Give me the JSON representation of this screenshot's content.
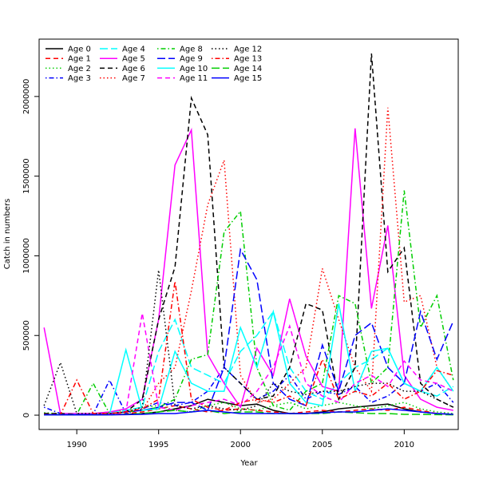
{
  "chart_data": {
    "type": "line",
    "title": "",
    "xlabel": "Year",
    "ylabel": "Catch in numbers",
    "xlim": [
      1987.7,
      2013.3
    ],
    "ylim": [
      -90000,
      2360000
    ],
    "xticks": [
      1990,
      1995,
      2000,
      2005,
      2010
    ],
    "yticks": [
      0,
      500000,
      1000000,
      1500000,
      2000000
    ],
    "legend_position": "top-left",
    "x": [
      1988,
      1989,
      1990,
      1991,
      1992,
      1993,
      1994,
      1995,
      1996,
      1997,
      1998,
      1999,
      2000,
      2001,
      2002,
      2003,
      2004,
      2005,
      2006,
      2007,
      2008,
      2009,
      2010,
      2011,
      2012,
      2013
    ],
    "series": [
      {
        "name": "Age 0",
        "color": "#000000",
        "dash": "solid",
        "values": [
          5000,
          3000,
          2000,
          2000,
          3000,
          5000,
          10000,
          20000,
          40000,
          60000,
          100000,
          80000,
          60000,
          70000,
          30000,
          10000,
          10000,
          20000,
          40000,
          50000,
          60000,
          70000,
          40000,
          20000,
          10000,
          5000
        ]
      },
      {
        "name": "Age 1",
        "color": "#ff0000",
        "dash": "dashed",
        "values": [
          10000,
          5000,
          3000,
          4000,
          5000,
          10000,
          20000,
          40000,
          60000,
          40000,
          20000,
          30000,
          40000,
          30000,
          20000,
          10000,
          20000,
          30000,
          20000,
          30000,
          40000,
          30000,
          50000,
          30000,
          10000,
          5000
        ]
      },
      {
        "name": "Age 2",
        "color": "#00cd00",
        "dash": "dotted",
        "values": [
          15000,
          8000,
          5000,
          10000,
          20000,
          30000,
          50000,
          60000,
          30000,
          20000,
          60000,
          80000,
          40000,
          30000,
          60000,
          80000,
          40000,
          60000,
          80000,
          60000,
          40000,
          60000,
          80000,
          40000,
          20000,
          10000
        ]
      },
      {
        "name": "Age 3",
        "color": "#0000ff",
        "dash": "dotdash",
        "values": [
          50000,
          10000,
          5000,
          5000,
          220000,
          10000,
          40000,
          80000,
          60000,
          80000,
          150000,
          300000,
          200000,
          100000,
          150000,
          250000,
          100000,
          150000,
          130000,
          180000,
          80000,
          120000,
          200000,
          150000,
          200000,
          80000
        ]
      },
      {
        "name": "Age 4",
        "color": "#00ffff",
        "dash": "longdash",
        "values": [
          5000,
          3000,
          3000,
          10000,
          20000,
          30000,
          50000,
          400000,
          600000,
          300000,
          250000,
          200000,
          400000,
          500000,
          650000,
          300000,
          150000,
          100000,
          200000,
          300000,
          350000,
          420000,
          200000,
          150000,
          120000,
          180000
        ]
      },
      {
        "name": "Age 5",
        "color": "#ff00ff",
        "dash": "solid",
        "values": [
          550000,
          10000,
          10000,
          10000,
          20000,
          40000,
          100000,
          600000,
          1570000,
          1790000,
          380000,
          200000,
          50000,
          420000,
          250000,
          730000,
          370000,
          180000,
          150000,
          1800000,
          670000,
          1190000,
          250000,
          100000,
          50000,
          30000
        ]
      },
      {
        "name": "Age 6",
        "color": "#000000",
        "dash": "dashed",
        "values": [
          10000,
          10000,
          5000,
          5000,
          10000,
          20000,
          100000,
          600000,
          930000,
          1990000,
          1760000,
          300000,
          200000,
          100000,
          120000,
          300000,
          700000,
          660000,
          100000,
          300000,
          2270000,
          900000,
          1050000,
          200000,
          100000,
          50000
        ]
      },
      {
        "name": "Age 7",
        "color": "#ff0000",
        "dash": "dotted",
        "values": [
          5000,
          3000,
          3000,
          5000,
          10000,
          20000,
          30000,
          200000,
          300000,
          780000,
          1320000,
          1600000,
          250000,
          80000,
          100000,
          200000,
          300000,
          920000,
          600000,
          300000,
          150000,
          1930000,
          710000,
          750000,
          300000,
          150000
        ]
      },
      {
        "name": "Age 8",
        "color": "#00cd00",
        "dash": "dotdash",
        "values": [
          3000,
          2000,
          5000,
          200000,
          10000,
          20000,
          30000,
          50000,
          100000,
          350000,
          380000,
          1150000,
          1280000,
          300000,
          60000,
          30000,
          150000,
          200000,
          750000,
          700000,
          200000,
          300000,
          1410000,
          550000,
          750000,
          220000
        ]
      },
      {
        "name": "Age 9",
        "color": "#0000ff",
        "dash": "longdash",
        "values": [
          2000,
          2000,
          3000,
          5000,
          10000,
          20000,
          30000,
          50000,
          80000,
          80000,
          30000,
          300000,
          1040000,
          850000,
          200000,
          100000,
          60000,
          440000,
          150000,
          500000,
          580000,
          300000,
          200000,
          650000,
          350000,
          590000
        ]
      },
      {
        "name": "Age 10",
        "color": "#00ffff",
        "dash": "solid",
        "values": [
          2000,
          2000,
          2000,
          3000,
          5000,
          410000,
          30000,
          40000,
          400000,
          200000,
          150000,
          150000,
          550000,
          300000,
          650000,
          200000,
          80000,
          60000,
          700000,
          150000,
          400000,
          420000,
          200000,
          150000,
          300000,
          150000
        ]
      },
      {
        "name": "Age 11",
        "color": "#ff00ff",
        "dash": "dashed",
        "values": [
          3000,
          2000,
          2000,
          3000,
          5000,
          20000,
          640000,
          50000,
          30000,
          60000,
          80000,
          100000,
          60000,
          150000,
          300000,
          560000,
          200000,
          120000,
          80000,
          200000,
          250000,
          180000,
          340000,
          220000,
          200000,
          150000
        ]
      },
      {
        "name": "Age 12",
        "color": "#000000",
        "dash": "dotted",
        "values": [
          60000,
          330000,
          10000,
          10000,
          10000,
          20000,
          50000,
          910000,
          60000,
          40000,
          60000,
          40000,
          30000,
          60000,
          200000,
          150000,
          130000,
          150000,
          150000,
          180000,
          200000,
          200000,
          150000,
          150000,
          100000,
          50000
        ]
      },
      {
        "name": "Age 13",
        "color": "#ff0000",
        "dash": "dotdash",
        "values": [
          3000,
          3000,
          220000,
          10000,
          10000,
          20000,
          40000,
          100000,
          840000,
          100000,
          50000,
          30000,
          80000,
          100000,
          80000,
          120000,
          60000,
          350000,
          100000,
          150000,
          120000,
          200000,
          100000,
          150000,
          280000,
          250000
        ]
      },
      {
        "name": "Age 14",
        "color": "#00cd00",
        "dash": "longdash",
        "values": [
          2000,
          2000,
          2000,
          2000,
          2000,
          5000,
          10000,
          20000,
          30000,
          20000,
          30000,
          10000,
          20000,
          20000,
          10000,
          10000,
          10000,
          10000,
          20000,
          15000,
          10000,
          10000,
          5000,
          5000,
          3000,
          2000
        ]
      },
      {
        "name": "Age 15",
        "color": "#0000ff",
        "dash": "solid",
        "values": [
          2000,
          2000,
          2000,
          2000,
          2000,
          3000,
          5000,
          10000,
          10000,
          20000,
          30000,
          20000,
          10000,
          10000,
          10000,
          10000,
          10000,
          15000,
          20000,
          20000,
          30000,
          40000,
          30000,
          20000,
          10000,
          5000
        ]
      }
    ]
  }
}
